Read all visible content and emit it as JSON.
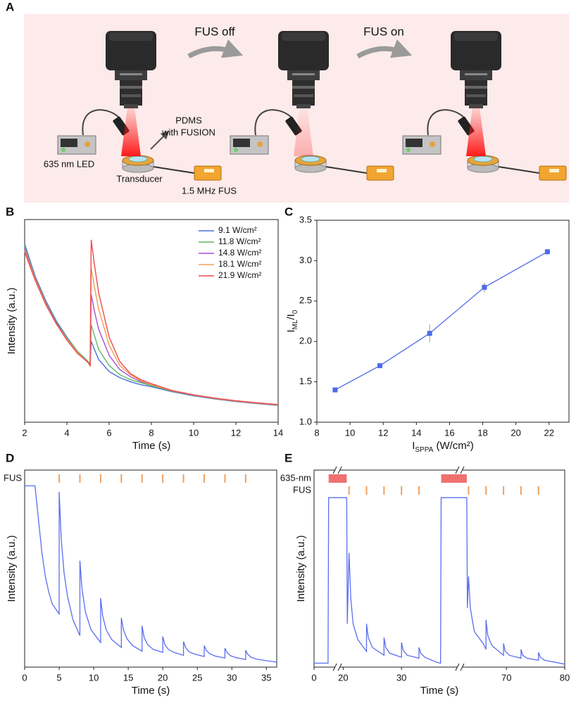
{
  "panel_a": {
    "panel": "A",
    "steps": [
      "FUS off",
      "FUS on"
    ],
    "sample_label": [
      "PDMS",
      "with FUSION"
    ],
    "led_label": "635 nm LED",
    "transducer_label": "Transducer",
    "fus_label": "1.5 MHz FUS"
  },
  "chart_data": [
    {
      "panel": "B",
      "type": "line",
      "x_label": [
        "Time (s)"
      ],
      "y_label": [
        "Intensity (a.u.)"
      ],
      "x": [
        2,
        2.5,
        3,
        3.5,
        4,
        4.5,
        5,
        5.1,
        5.15,
        5.3,
        5.5,
        6,
        6.5,
        7,
        7.5,
        8,
        9,
        10,
        11,
        12,
        13,
        14
      ],
      "series": [
        {
          "name": "9.1 W/cm²",
          "color": "#4a6fdc",
          "values": [
            88,
            72,
            60,
            50,
            42,
            35,
            30,
            28.5,
            40,
            36,
            31,
            25,
            22,
            20,
            18.5,
            17.5,
            15,
            13,
            11.5,
            10.2,
            9.2,
            8.3
          ]
        },
        {
          "name": "11.8 W/cm²",
          "color": "#5cb85c",
          "values": [
            87,
            71.5,
            59.5,
            49.5,
            41.5,
            35,
            30,
            28.5,
            48,
            43,
            36,
            28,
            23.5,
            21,
            19.5,
            18,
            15.2,
            13.2,
            11.6,
            10.3,
            9.3,
            8.4
          ]
        },
        {
          "name": "14.8 W/cm²",
          "color": "#a64fd8",
          "values": [
            86,
            71,
            59,
            49,
            41,
            34.5,
            29.5,
            28,
            63,
            55,
            46,
            33,
            26,
            22.5,
            20,
            18.5,
            15.4,
            13.3,
            11.7,
            10.4,
            9.4,
            8.5
          ]
        },
        {
          "name": "18.1 W/cm²",
          "color": "#f0a050",
          "values": [
            85,
            70.5,
            58.5,
            48.5,
            41,
            34.5,
            29.5,
            28,
            76,
            67,
            56,
            38,
            28,
            23.5,
            20.5,
            18.5,
            15.5,
            13.4,
            11.8,
            10.5,
            9.5,
            8.6
          ]
        },
        {
          "name": "21.9 W/cm²",
          "color": "#ee4b4b",
          "values": [
            84,
            70,
            58,
            48.5,
            40.5,
            34,
            29.5,
            28,
            90,
            78,
            64,
            42,
            30,
            24,
            21,
            19,
            15.6,
            13.5,
            11.9,
            10.6,
            9.6,
            8.7
          ]
        }
      ],
      "xlim": [
        2,
        14
      ],
      "xticks": [
        2,
        4,
        6,
        8,
        10,
        12,
        14
      ],
      "ylim": [
        0,
        100
      ],
      "legend": "upper right"
    },
    {
      "panel": "C",
      "type": "line",
      "markers": true,
      "x_label": [
        "I",
        "SPPA",
        " (W/cm²)"
      ],
      "y_label": [
        "I",
        "ML",
        "/I",
        "0"
      ],
      "x": [
        9.1,
        11.8,
        14.8,
        18.1,
        21.9
      ],
      "values": [
        1.4,
        1.7,
        2.1,
        2.67,
        3.11
      ],
      "errors": [
        0.02,
        0.01,
        0.11,
        0.06,
        0.01
      ],
      "color": "#4d6be8",
      "xlim": [
        8,
        23.2
      ],
      "xticks": [
        8,
        10,
        12,
        14,
        16,
        18,
        20,
        22
      ],
      "ylim": [
        1,
        3.5
      ],
      "yticks": [
        {
          "value": 1,
          "label": "1.0"
        },
        1.5,
        {
          "value": 2,
          "label": "2.0"
        },
        2.5,
        {
          "value": 3,
          "label": "3.0"
        },
        3.5
      ]
    },
    {
      "panel": "D",
      "type": "line",
      "x_label": [
        "Time (s)"
      ],
      "y_label": [
        "Intensity (a.u.)"
      ],
      "x": [
        0,
        1.5,
        2,
        2.5,
        3,
        3.5,
        4,
        5,
        5,
        5.3,
        5.7,
        6.2,
        7,
        8,
        8,
        8.3,
        8.8,
        9.6,
        11,
        11,
        11.3,
        11.8,
        12.6,
        14,
        14,
        14.3,
        14.8,
        15.6,
        17,
        17,
        17.3,
        17.8,
        18.6,
        20,
        20,
        20.3,
        20.8,
        21.6,
        23,
        23,
        23.3,
        23.8,
        24.6,
        26,
        26,
        26.3,
        26.8,
        27.6,
        29,
        29,
        29.3,
        29.8,
        30.6,
        32,
        32,
        32.3,
        32.8,
        33.6,
        36.5
      ],
      "values": [
        92,
        92,
        75,
        58,
        46,
        38,
        32,
        27,
        89,
        65,
        48,
        36,
        24,
        16,
        54,
        40,
        28,
        19,
        12.5,
        35,
        26,
        19,
        14,
        10,
        25,
        19,
        14.5,
        11,
        8,
        21,
        15,
        11.5,
        9,
        7.5,
        15.5,
        11.5,
        9,
        7.5,
        6,
        13,
        10,
        7.8,
        6.6,
        5.4,
        11,
        8.5,
        6.8,
        5.6,
        4.6,
        9.6,
        7.4,
        5.8,
        4.8,
        3.9,
        8.6,
        6.5,
        5,
        4,
        2.5
      ],
      "color": "#5b6ef0",
      "xlim": [
        0,
        36.5
      ],
      "xticks": [
        0,
        5,
        10,
        15,
        20,
        25,
        30,
        35
      ],
      "ylim": [
        0,
        100
      ],
      "pulse_label": "FUS",
      "pulses": [
        5,
        8,
        11,
        14,
        17,
        20,
        23,
        26,
        29,
        32
      ],
      "pulse_color": "#f0a060"
    },
    {
      "panel": "E",
      "type": "line",
      "x_label": [
        "Time (s)"
      ],
      "y_label": [
        "Intensity (a.u.)"
      ],
      "x": [
        0,
        2.4,
        2.5,
        20.6,
        20.7,
        21,
        21.3,
        21.7,
        22.5,
        24,
        24,
        24.3,
        25,
        27,
        27,
        27.3,
        28,
        30,
        30,
        30.3,
        31,
        33,
        33,
        33.3,
        34,
        36,
        36.7,
        36.8,
        63.2,
        63.3,
        63.5,
        63.8,
        64.5,
        66,
        66.5,
        66.5,
        66.8,
        67.5,
        69.5,
        69.5,
        69.8,
        70.5,
        72.5,
        72.5,
        72.8,
        73.5,
        75.5,
        75.5,
        75.8,
        76.5,
        80
      ],
      "values": [
        2,
        2,
        86,
        86,
        22,
        58,
        35,
        22,
        14,
        8,
        22,
        15,
        10,
        6,
        15,
        10,
        7,
        5,
        12.5,
        8.5,
        6,
        4.5,
        10,
        7,
        5,
        2.5,
        2,
        86,
        86,
        30,
        46,
        30,
        18,
        12,
        9,
        24,
        16,
        11,
        6,
        12,
        8,
        6,
        4.5,
        9,
        6,
        4.5,
        3.5,
        7.5,
        5,
        3.5,
        1.5
      ],
      "color": "#5b6ef0",
      "x_segments": [
        [
          0,
          4
        ],
        [
          19,
          40
        ],
        [
          62,
          80
        ]
      ],
      "xticks": [
        0,
        20,
        30,
        70,
        80
      ],
      "ylim": [
        0,
        100
      ],
      "light_label": "635-nm",
      "light_on": [
        [
          2.5,
          20.6
        ],
        [
          36.8,
          63.2
        ]
      ],
      "light_color": "#f07070",
      "pulse_label": "FUS",
      "pulses": [
        21,
        24,
        27,
        30,
        33,
        63.5,
        66.5,
        69.5,
        72.5,
        75.5
      ],
      "pulse_color": "#f0a060"
    }
  ]
}
